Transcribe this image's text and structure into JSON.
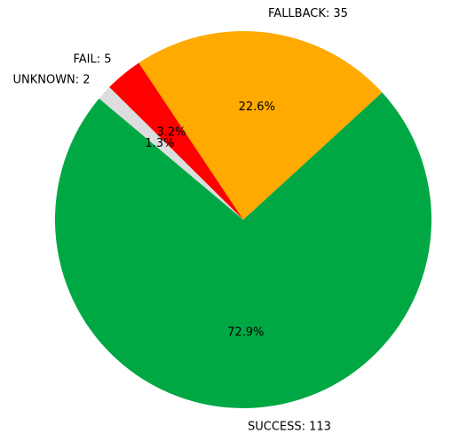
{
  "chart_data": {
    "type": "pie",
    "title": "",
    "slices": [
      {
        "label": "SUCCESS",
        "value": 113,
        "percent_label": "72.9%",
        "color": "#00a844",
        "display_label": "SUCCESS: 113"
      },
      {
        "label": "FALLBACK",
        "value": 35,
        "percent_label": "22.6%",
        "color": "#ffaa00",
        "display_label": "FALLBACK: 35"
      },
      {
        "label": "FAIL",
        "value": 5,
        "percent_label": "3.2%",
        "color": "#ff0000",
        "display_label": "FAIL: 5"
      },
      {
        "label": "UNKNOWN",
        "value": 2,
        "percent_label": "1.3%",
        "color": "#dddddd",
        "display_label": "UNKNOWN: 2"
      }
    ],
    "start_angle_deg": 140,
    "direction": "counterclockwise",
    "legend": "none"
  }
}
